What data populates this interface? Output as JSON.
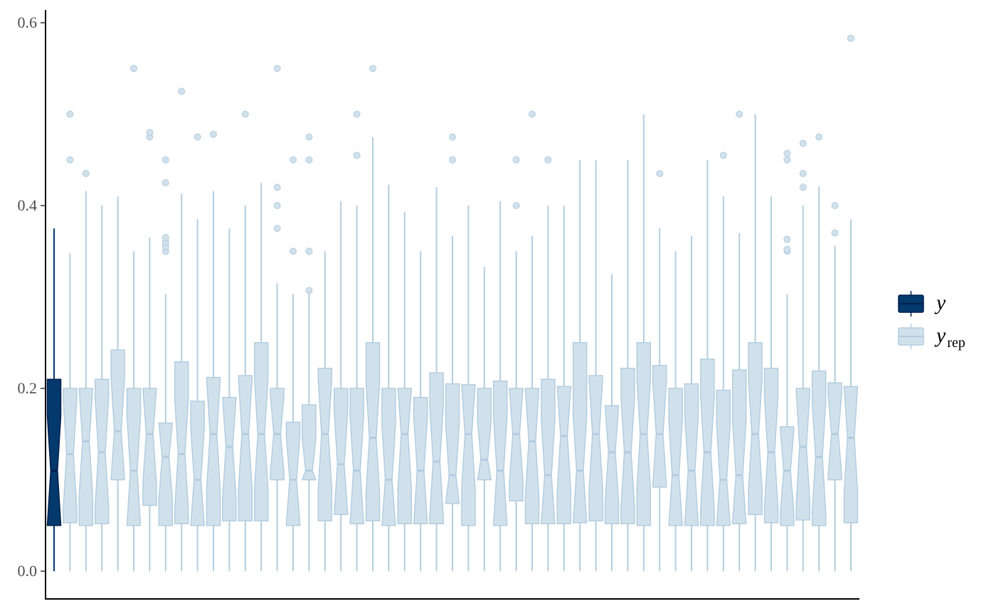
{
  "chart_data": {
    "type": "boxplot",
    "title": "",
    "xlabel": "",
    "ylabel": "",
    "ylim": [
      -0.03,
      0.615
    ],
    "yticks": [
      0.0,
      0.2,
      0.4,
      0.6
    ],
    "ytick_labels": [
      "0.0",
      "0.2",
      "0.4",
      "0.6"
    ],
    "grid": false,
    "legend_position": "right",
    "notched": true,
    "colors": {
      "y_fill": "#03396c",
      "y_line": "#011f4b",
      "rep_fill": "#d1e1ec",
      "rep_line": "#b3cde0"
    },
    "legend": [
      {
        "key": "y",
        "label": "y",
        "subscript": ""
      },
      {
        "key": "yrep",
        "label": "y",
        "subscript": "rep"
      }
    ],
    "series": [
      {
        "name": "y",
        "boxes": [
          {
            "lowerWhisker": 0.0,
            "q1": 0.05,
            "median": 0.11,
            "q3": 0.21,
            "upperWhisker": 0.375,
            "outliers": []
          }
        ]
      },
      {
        "name": "yrep",
        "boxes": [
          {
            "lowerWhisker": 0.0,
            "q1": 0.053,
            "median": 0.128,
            "q3": 0.2,
            "upperWhisker": 0.348,
            "outliers": [
              0.45,
              0.5
            ]
          },
          {
            "lowerWhisker": 0.0,
            "q1": 0.05,
            "median": 0.142,
            "q3": 0.2,
            "upperWhisker": 0.416,
            "outliers": [
              0.435
            ]
          },
          {
            "lowerWhisker": 0.0,
            "q1": 0.052,
            "median": 0.13,
            "q3": 0.21,
            "upperWhisker": 0.4,
            "outliers": []
          },
          {
            "lowerWhisker": 0.0,
            "q1": 0.1,
            "median": 0.153,
            "q3": 0.242,
            "upperWhisker": 0.41,
            "outliers": []
          },
          {
            "lowerWhisker": 0.0,
            "q1": 0.05,
            "median": 0.11,
            "q3": 0.2,
            "upperWhisker": 0.35,
            "outliers": [
              0.55
            ]
          },
          {
            "lowerWhisker": 0.0,
            "q1": 0.072,
            "median": 0.15,
            "q3": 0.2,
            "upperWhisker": 0.365,
            "outliers": [
              0.475,
              0.48
            ]
          },
          {
            "lowerWhisker": 0.0,
            "q1": 0.05,
            "median": 0.125,
            "q3": 0.162,
            "upperWhisker": 0.303,
            "outliers": [
              0.35,
              0.355,
              0.36,
              0.365,
              0.425,
              0.45
            ]
          },
          {
            "lowerWhisker": 0.0,
            "q1": 0.052,
            "median": 0.128,
            "q3": 0.229,
            "upperWhisker": 0.413,
            "outliers": [
              0.525
            ]
          },
          {
            "lowerWhisker": 0.0,
            "q1": 0.05,
            "median": 0.1,
            "q3": 0.186,
            "upperWhisker": 0.385,
            "outliers": [
              0.475
            ]
          },
          {
            "lowerWhisker": 0.0,
            "q1": 0.05,
            "median": 0.15,
            "q3": 0.212,
            "upperWhisker": 0.416,
            "outliers": [
              0.478
            ]
          },
          {
            "lowerWhisker": 0.0,
            "q1": 0.055,
            "median": 0.136,
            "q3": 0.19,
            "upperWhisker": 0.375,
            "outliers": []
          },
          {
            "lowerWhisker": 0.0,
            "q1": 0.055,
            "median": 0.15,
            "q3": 0.214,
            "upperWhisker": 0.4,
            "outliers": [
              0.5
            ]
          },
          {
            "lowerWhisker": 0.0,
            "q1": 0.055,
            "median": 0.15,
            "q3": 0.25,
            "upperWhisker": 0.425,
            "outliers": []
          },
          {
            "lowerWhisker": 0.0,
            "q1": 0.1,
            "median": 0.15,
            "q3": 0.2,
            "upperWhisker": 0.315,
            "outliers": [
              0.375,
              0.4,
              0.42,
              0.55
            ]
          },
          {
            "lowerWhisker": 0.0,
            "q1": 0.05,
            "median": 0.1,
            "q3": 0.163,
            "upperWhisker": 0.303,
            "outliers": [
              0.35,
              0.45
            ]
          },
          {
            "lowerWhisker": 0.0,
            "q1": 0.1,
            "median": 0.11,
            "q3": 0.182,
            "upperWhisker": 0.305,
            "outliers": [
              0.307,
              0.35,
              0.35,
              0.45,
              0.475
            ]
          },
          {
            "lowerWhisker": 0.0,
            "q1": 0.055,
            "median": 0.15,
            "q3": 0.222,
            "upperWhisker": 0.35,
            "outliers": []
          },
          {
            "lowerWhisker": 0.0,
            "q1": 0.062,
            "median": 0.117,
            "q3": 0.2,
            "upperWhisker": 0.405,
            "outliers": []
          },
          {
            "lowerWhisker": 0.0,
            "q1": 0.052,
            "median": 0.11,
            "q3": 0.2,
            "upperWhisker": 0.4,
            "outliers": [
              0.455,
              0.5
            ]
          },
          {
            "lowerWhisker": 0.0,
            "q1": 0.055,
            "median": 0.146,
            "q3": 0.25,
            "upperWhisker": 0.475,
            "outliers": [
              0.55
            ]
          },
          {
            "lowerWhisker": 0.0,
            "q1": 0.05,
            "median": 0.1,
            "q3": 0.2,
            "upperWhisker": 0.423,
            "outliers": []
          },
          {
            "lowerWhisker": 0.0,
            "q1": 0.052,
            "median": 0.15,
            "q3": 0.2,
            "upperWhisker": 0.393,
            "outliers": []
          },
          {
            "lowerWhisker": 0.0,
            "q1": 0.052,
            "median": 0.11,
            "q3": 0.19,
            "upperWhisker": 0.35,
            "outliers": []
          },
          {
            "lowerWhisker": 0.0,
            "q1": 0.052,
            "median": 0.12,
            "q3": 0.217,
            "upperWhisker": 0.42,
            "outliers": []
          },
          {
            "lowerWhisker": 0.0,
            "q1": 0.074,
            "median": 0.105,
            "q3": 0.205,
            "upperWhisker": 0.367,
            "outliers": [
              0.45,
              0.475
            ]
          },
          {
            "lowerWhisker": 0.0,
            "q1": 0.05,
            "median": 0.15,
            "q3": 0.204,
            "upperWhisker": 0.4,
            "outliers": []
          },
          {
            "lowerWhisker": 0.0,
            "q1": 0.1,
            "median": 0.122,
            "q3": 0.2,
            "upperWhisker": 0.333,
            "outliers": []
          },
          {
            "lowerWhisker": 0.0,
            "q1": 0.05,
            "median": 0.11,
            "q3": 0.208,
            "upperWhisker": 0.405,
            "outliers": []
          },
          {
            "lowerWhisker": 0.0,
            "q1": 0.077,
            "median": 0.15,
            "q3": 0.2,
            "upperWhisker": 0.35,
            "outliers": [
              0.4,
              0.45
            ]
          },
          {
            "lowerWhisker": 0.0,
            "q1": 0.052,
            "median": 0.142,
            "q3": 0.2,
            "upperWhisker": 0.367,
            "outliers": [
              0.5
            ]
          },
          {
            "lowerWhisker": 0.0,
            "q1": 0.052,
            "median": 0.105,
            "q3": 0.21,
            "upperWhisker": 0.4,
            "outliers": [
              0.45
            ]
          },
          {
            "lowerWhisker": 0.0,
            "q1": 0.052,
            "median": 0.148,
            "q3": 0.202,
            "upperWhisker": 0.4,
            "outliers": []
          },
          {
            "lowerWhisker": 0.0,
            "q1": 0.053,
            "median": 0.11,
            "q3": 0.25,
            "upperWhisker": 0.45,
            "outliers": []
          },
          {
            "lowerWhisker": 0.0,
            "q1": 0.055,
            "median": 0.15,
            "q3": 0.214,
            "upperWhisker": 0.45,
            "outliers": []
          },
          {
            "lowerWhisker": 0.0,
            "q1": 0.052,
            "median": 0.13,
            "q3": 0.181,
            "upperWhisker": 0.325,
            "outliers": []
          },
          {
            "lowerWhisker": 0.0,
            "q1": 0.052,
            "median": 0.13,
            "q3": 0.222,
            "upperWhisker": 0.45,
            "outliers": []
          },
          {
            "lowerWhisker": 0.0,
            "q1": 0.05,
            "median": 0.15,
            "q3": 0.25,
            "upperWhisker": 0.5,
            "outliers": []
          },
          {
            "lowerWhisker": 0.0,
            "q1": 0.092,
            "median": 0.15,
            "q3": 0.225,
            "upperWhisker": 0.375,
            "outliers": [
              0.435
            ]
          },
          {
            "lowerWhisker": 0.0,
            "q1": 0.05,
            "median": 0.105,
            "q3": 0.2,
            "upperWhisker": 0.35,
            "outliers": []
          },
          {
            "lowerWhisker": 0.0,
            "q1": 0.05,
            "median": 0.11,
            "q3": 0.205,
            "upperWhisker": 0.367,
            "outliers": []
          },
          {
            "lowerWhisker": 0.0,
            "q1": 0.05,
            "median": 0.13,
            "q3": 0.232,
            "upperWhisker": 0.45,
            "outliers": []
          },
          {
            "lowerWhisker": 0.0,
            "q1": 0.05,
            "median": 0.1,
            "q3": 0.198,
            "upperWhisker": 0.41,
            "outliers": [
              0.455
            ]
          },
          {
            "lowerWhisker": 0.0,
            "q1": 0.052,
            "median": 0.105,
            "q3": 0.22,
            "upperWhisker": 0.37,
            "outliers": [
              0.5
            ]
          },
          {
            "lowerWhisker": 0.0,
            "q1": 0.062,
            "median": 0.15,
            "q3": 0.25,
            "upperWhisker": 0.5,
            "outliers": []
          },
          {
            "lowerWhisker": 0.0,
            "q1": 0.053,
            "median": 0.13,
            "q3": 0.222,
            "upperWhisker": 0.41,
            "outliers": []
          },
          {
            "lowerWhisker": 0.0,
            "q1": 0.05,
            "median": 0.11,
            "q3": 0.158,
            "upperWhisker": 0.303,
            "outliers": [
              0.35,
              0.352,
              0.363,
              0.45,
              0.457
            ]
          },
          {
            "lowerWhisker": 0.0,
            "q1": 0.056,
            "median": 0.136,
            "q3": 0.2,
            "upperWhisker": 0.4,
            "outliers": [
              0.42,
              0.435,
              0.468
            ]
          },
          {
            "lowerWhisker": 0.0,
            "q1": 0.05,
            "median": 0.125,
            "q3": 0.219,
            "upperWhisker": 0.421,
            "outliers": [
              0.475
            ]
          },
          {
            "lowerWhisker": 0.0,
            "q1": 0.1,
            "median": 0.15,
            "q3": 0.206,
            "upperWhisker": 0.356,
            "outliers": [
              0.37,
              0.4
            ]
          },
          {
            "lowerWhisker": 0.0,
            "q1": 0.053,
            "median": 0.146,
            "q3": 0.202,
            "upperWhisker": 0.385,
            "outliers": [
              0.583
            ]
          }
        ]
      }
    ]
  }
}
